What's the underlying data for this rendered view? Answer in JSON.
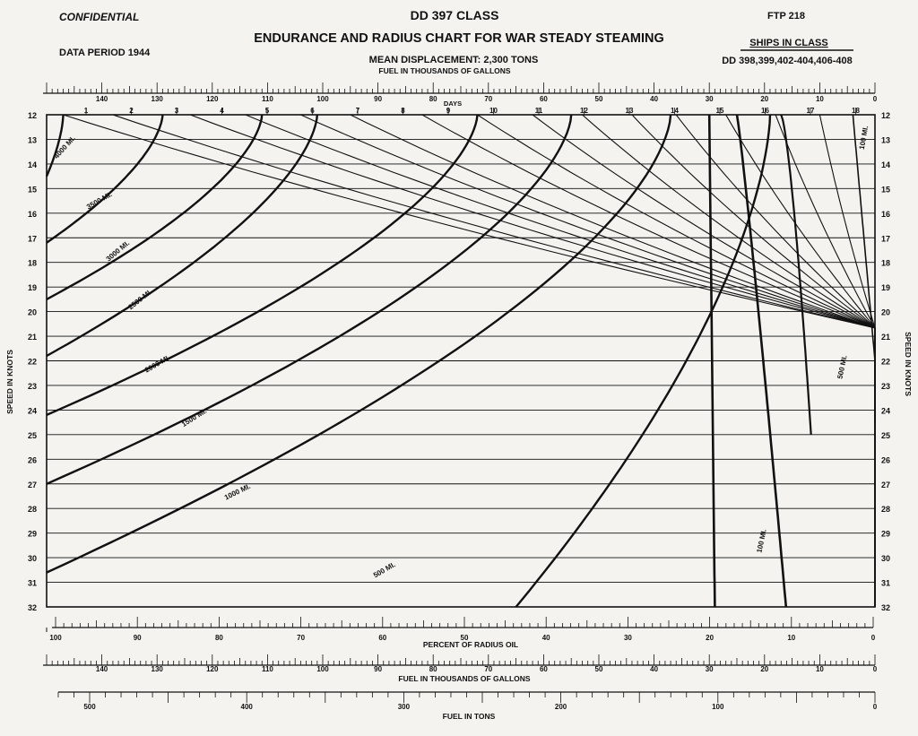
{
  "header": {
    "confidential": "CONFIDENTIAL",
    "class_title": "DD 397 CLASS",
    "ftp": "FTP 218",
    "title": "ENDURANCE AND RADIUS CHART FOR WAR STEADY STEAMING",
    "data_period": "DATA PERIOD  1944",
    "mean_displacement": "MEAN DISPLACEMENT: 2,300 TONS",
    "ships_label": "SHIPS  IN  CLASS",
    "ships_list": "DD 398,399,402-404,406-408"
  },
  "chart_data": {
    "type": "line",
    "title": "ENDURANCE AND RADIUS CHART FOR WAR STEADY STEAMING",
    "top_axis_label": "FUEL IN THOUSANDS OF GALLONS",
    "days_label": "DAYS",
    "ylabel_left": "SPEED IN KNOTS",
    "ylabel_right": "SPEED IN KNOTS",
    "percent_label": "PERCENT OF RADIUS OIL",
    "gallons_label": "FUEL IN THOUSANDS OF GALLONS",
    "tons_label": "FUEL IN TONS",
    "speed_range": [
      12,
      32
    ],
    "speed_ticks": [
      "12",
      "13",
      "14",
      "15",
      "16",
      "17",
      "18",
      "19",
      "20",
      "21",
      "22",
      "23",
      "24",
      "25",
      "26",
      "27",
      "28",
      "29",
      "30",
      "31",
      "32"
    ],
    "fuel_gallons_range": [
      0,
      150
    ],
    "gallon_ticks": [
      "140",
      "130",
      "120",
      "110",
      "100",
      "90",
      "80",
      "70",
      "60",
      "50",
      "40",
      "30",
      "20",
      "10",
      "0"
    ],
    "day_ticks": [
      "1",
      "2",
      "3",
      "4",
      "5",
      "6",
      "7",
      "8",
      "9",
      "10",
      "11",
      "12",
      "13",
      "14",
      "15",
      "16",
      "17",
      "18"
    ],
    "percent_ticks": [
      "100",
      "90",
      "80",
      "70",
      "60",
      "50",
      "40",
      "30",
      "20",
      "10",
      "0"
    ],
    "ton_ticks": [
      "500",
      "400",
      "300",
      "200",
      "100",
      "0"
    ],
    "grid": true,
    "radius_series": [
      {
        "name": "4000 MI.",
        "fuel_at_12kn": 147,
        "fuel_at_14kn": 137
      },
      {
        "name": "3500 MI.",
        "fuel_at_12kn": 129,
        "fuel_at_17kn": 150
      },
      {
        "name": "3000 MI.",
        "fuel_at_12kn": 111,
        "fuel_at_19.5kn": 150
      },
      {
        "name": "2500 MI.",
        "fuel_at_12kn": 101,
        "fuel_at_21.7kn": 150
      },
      {
        "name": "2000 MI.",
        "fuel_at_12kn": 72,
        "fuel_at_24.2kn": 150
      },
      {
        "name": "1500 MI.",
        "fuel_at_12kn": 55,
        "fuel_at_27kn": 150
      },
      {
        "name": "1000 MI.",
        "fuel_at_12kn": 37,
        "fuel_at_30.5kn": 150
      },
      {
        "name": "500 MI.",
        "fuel_at_12kn": 19,
        "fuel_at_32kn": 65
      },
      {
        "name": "100 MI.",
        "fuel_at_12kn": 4,
        "fuel_at_32kn": 15
      }
    ],
    "curve_labels": [
      "4000 MI.",
      "3500 MI.",
      "3000 MI.",
      "2500 MI.",
      "2000 MI.",
      "1500 MI.",
      "1000 MI.",
      "500 MI.",
      "500 MI.",
      "100 MI.",
      "100 MI."
    ]
  }
}
